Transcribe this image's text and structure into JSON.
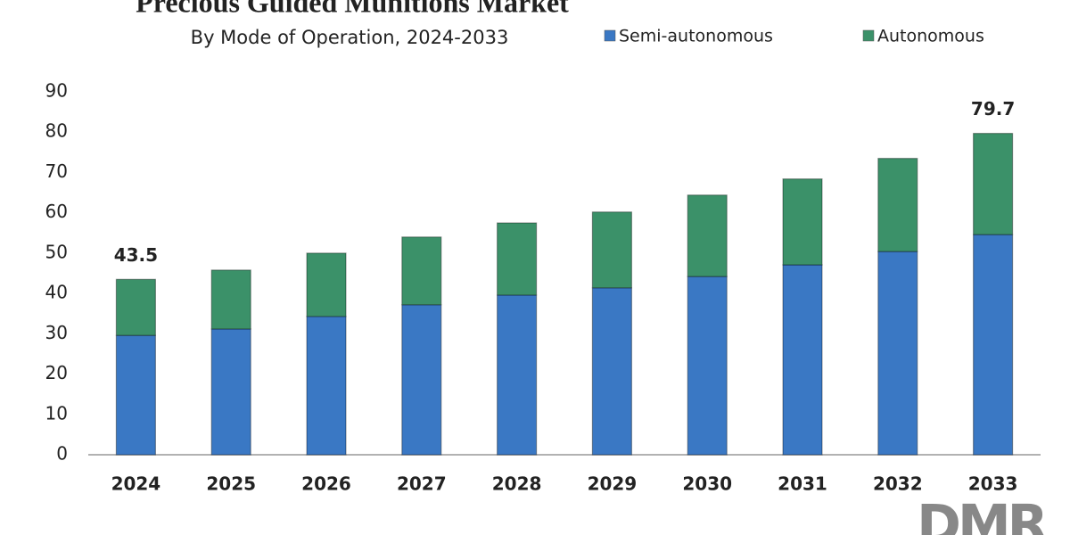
{
  "chart_data": {
    "type": "stacked_bar",
    "title": "Precious Guided Munitions Market",
    "subtitle": "By Mode of Operation, 2024-2033",
    "categories": [
      "2024",
      "2025",
      "2026",
      "2027",
      "2028",
      "2029",
      "2030",
      "2031",
      "2032",
      "2033"
    ],
    "series": [
      {
        "name": "Semi-autonomous",
        "color": "#3a78c4",
        "values": [
          29.6,
          31.2,
          34.3,
          37.2,
          39.6,
          41.4,
          44.2,
          47.1,
          50.4,
          54.6
        ]
      },
      {
        "name": "Autonomous",
        "color": "#3b9169",
        "values": [
          13.9,
          14.6,
          15.7,
          16.8,
          17.9,
          18.8,
          20.2,
          21.3,
          23.1,
          25.1
        ]
      }
    ],
    "annotations": [
      {
        "category": "2024",
        "value": 43.5
      },
      {
        "category": "2033",
        "value": 79.7
      }
    ],
    "ylim": [
      0,
      90
    ],
    "yticks": [
      0,
      10,
      20,
      30,
      40,
      50,
      60,
      70,
      80,
      90
    ],
    "grid": false,
    "logo": "DMR"
  }
}
